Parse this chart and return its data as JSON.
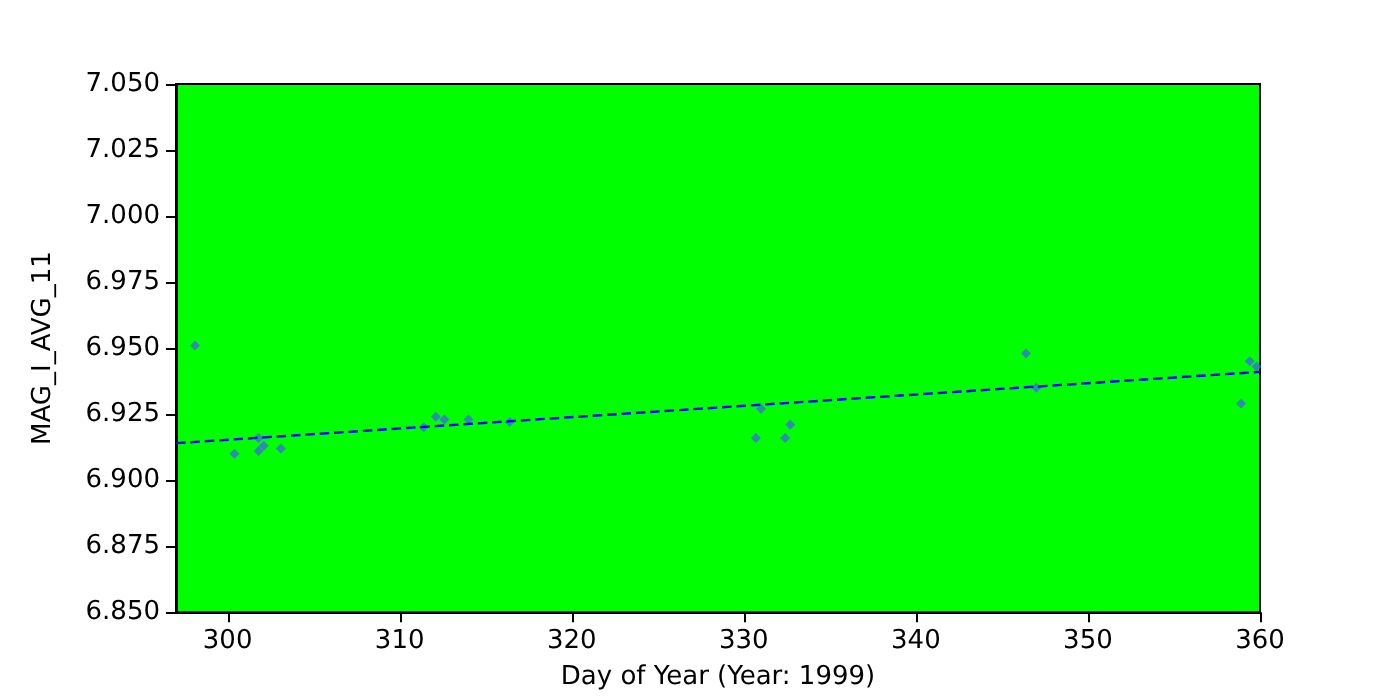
{
  "chart_data": {
    "type": "scatter",
    "xlabel": "Day of Year (Year: 1999)",
    "ylabel": "MAG_I_AVG_11",
    "marker": "diamond",
    "grid": false,
    "xlim": [
      297,
      360
    ],
    "xticks": [
      300,
      310,
      320,
      330,
      340,
      350,
      360
    ],
    "ylim": [
      6.85,
      7.05
    ],
    "yticks": [
      {
        "value": 6.85,
        "label": "6.850"
      },
      {
        "value": 6.875,
        "label": "6.875"
      },
      {
        "value": 6.9,
        "label": "6.900"
      },
      {
        "value": 6.925,
        "label": "6.925"
      },
      {
        "value": 6.95,
        "label": "6.950"
      },
      {
        "value": 6.975,
        "label": "6.975"
      },
      {
        "value": 7.0,
        "label": "7.000"
      },
      {
        "value": 7.025,
        "label": "7.025"
      },
      {
        "value": 7.05,
        "label": "7.050"
      }
    ],
    "series": [
      {
        "color": "#3a6fd8",
        "x": [
          298.1,
          300.4,
          301.8,
          301.8,
          302.1,
          303.1,
          311.4,
          312.1,
          312.6,
          314.0,
          316.4,
          330.7,
          331.0,
          332.4,
          332.7,
          346.4,
          347.0,
          358.9,
          359.4,
          359.8
        ],
        "values": [
          6.951,
          6.91,
          6.916,
          6.911,
          6.913,
          6.912,
          6.92,
          6.924,
          6.923,
          6.923,
          6.922,
          6.916,
          6.927,
          6.916,
          6.921,
          6.948,
          6.935,
          6.929,
          6.945,
          6.943
        ]
      },
      {
        "type": "line",
        "color": "#0000ff",
        "line_style": "dashed",
        "marker": "none",
        "x": [
          297,
          360
        ],
        "values": [
          6.914,
          6.941
        ]
      }
    ]
  }
}
